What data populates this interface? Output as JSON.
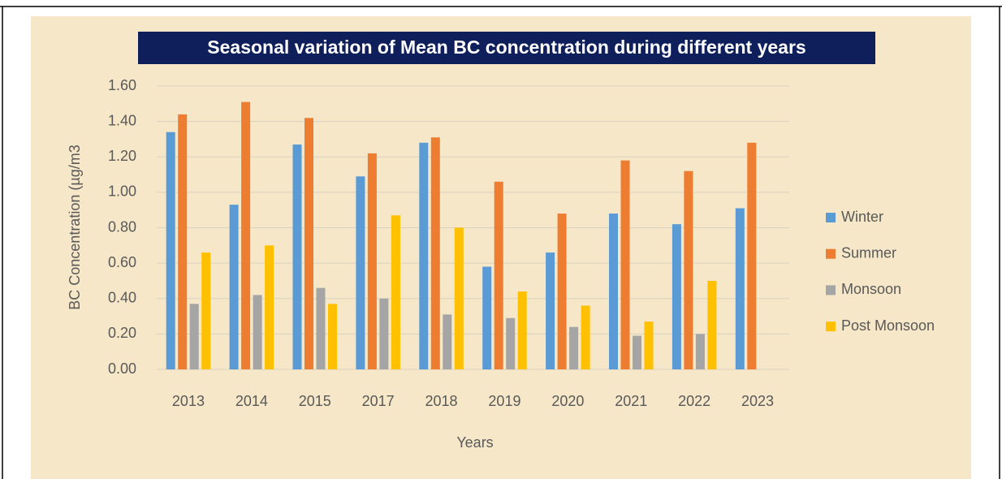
{
  "chart_data": {
    "type": "bar",
    "title": "Seasonal variation of Mean BC concentration during different years",
    "y_label": "BC Concentration (µg/m3",
    "x_label": "Years",
    "categories": [
      "2013",
      "2014",
      "2015",
      "2017",
      "2018",
      "2019",
      "2020",
      "2021",
      "2022",
      "2023"
    ],
    "series": [
      {
        "name": "Winter",
        "color": "#5b9bd5",
        "values": [
          1.34,
          0.93,
          1.27,
          1.09,
          1.28,
          0.58,
          0.66,
          0.88,
          0.82,
          0.91
        ]
      },
      {
        "name": "Summer",
        "color": "#ed7d31",
        "values": [
          1.44,
          1.51,
          1.42,
          1.22,
          1.31,
          1.06,
          0.88,
          1.18,
          1.12,
          1.28
        ]
      },
      {
        "name": "Monsoon",
        "color": "#a5a5a5",
        "values": [
          0.37,
          0.42,
          0.46,
          0.4,
          0.31,
          0.29,
          0.24,
          0.19,
          0.2,
          null
        ]
      },
      {
        "name": "Post Monsoon",
        "color": "#ffc000",
        "values": [
          0.66,
          0.7,
          0.37,
          0.87,
          0.8,
          0.44,
          0.36,
          0.27,
          0.5,
          null
        ]
      }
    ],
    "ylim": [
      0,
      1.6
    ],
    "yticks": [
      {
        "value": 0,
        "label": "0.00"
      },
      {
        "value": 0.2,
        "label": "0.20"
      },
      {
        "value": 0.4,
        "label": "0.40"
      },
      {
        "value": 0.6,
        "label": "0.60"
      },
      {
        "value": 0.8,
        "label": "0.80"
      },
      {
        "value": 1.0,
        "label": "1.00"
      },
      {
        "value": 1.2,
        "label": "1.20"
      },
      {
        "value": 1.4,
        "label": "1.40"
      },
      {
        "value": 1.6,
        "label": "1.60"
      }
    ],
    "grid": true,
    "legend": "right"
  }
}
